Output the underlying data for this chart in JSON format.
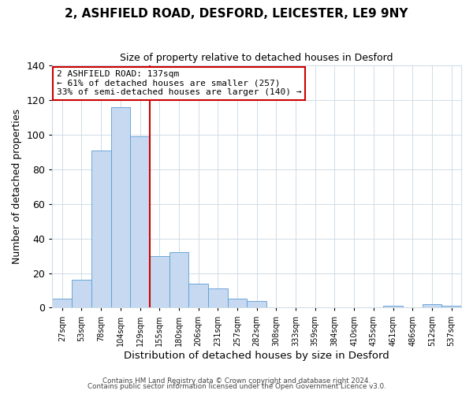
{
  "title": "2, ASHFIELD ROAD, DESFORD, LEICESTER, LE9 9NY",
  "subtitle": "Size of property relative to detached houses in Desford",
  "xlabel": "Distribution of detached houses by size in Desford",
  "ylabel": "Number of detached properties",
  "bar_labels": [
    "27sqm",
    "53sqm",
    "78sqm",
    "104sqm",
    "129sqm",
    "155sqm",
    "180sqm",
    "206sqm",
    "231sqm",
    "257sqm",
    "282sqm",
    "308sqm",
    "333sqm",
    "359sqm",
    "384sqm",
    "410sqm",
    "435sqm",
    "461sqm",
    "486sqm",
    "512sqm",
    "537sqm"
  ],
  "bar_values": [
    5,
    16,
    91,
    116,
    99,
    30,
    32,
    14,
    11,
    5,
    4,
    0,
    0,
    0,
    0,
    0,
    0,
    1,
    0,
    2,
    1
  ],
  "bar_color": "#c6d9f0",
  "bar_edge_color": "#5b9bd5",
  "ylim": [
    0,
    140
  ],
  "yticks": [
    0,
    20,
    40,
    60,
    80,
    100,
    120,
    140
  ],
  "vline_x_index": 4.5,
  "vline_color": "#cc0000",
  "annotation_title": "2 ASHFIELD ROAD: 137sqm",
  "annotation_line1": "← 61% of detached houses are smaller (257)",
  "annotation_line2": "33% of semi-detached houses are larger (140) →",
  "annotation_box_color": "#cc0000",
  "footer1": "Contains HM Land Registry data © Crown copyright and database right 2024.",
  "footer2": "Contains public sector information licensed under the Open Government Licence v3.0.",
  "background_color": "#ffffff",
  "grid_color": "#d0dce8"
}
